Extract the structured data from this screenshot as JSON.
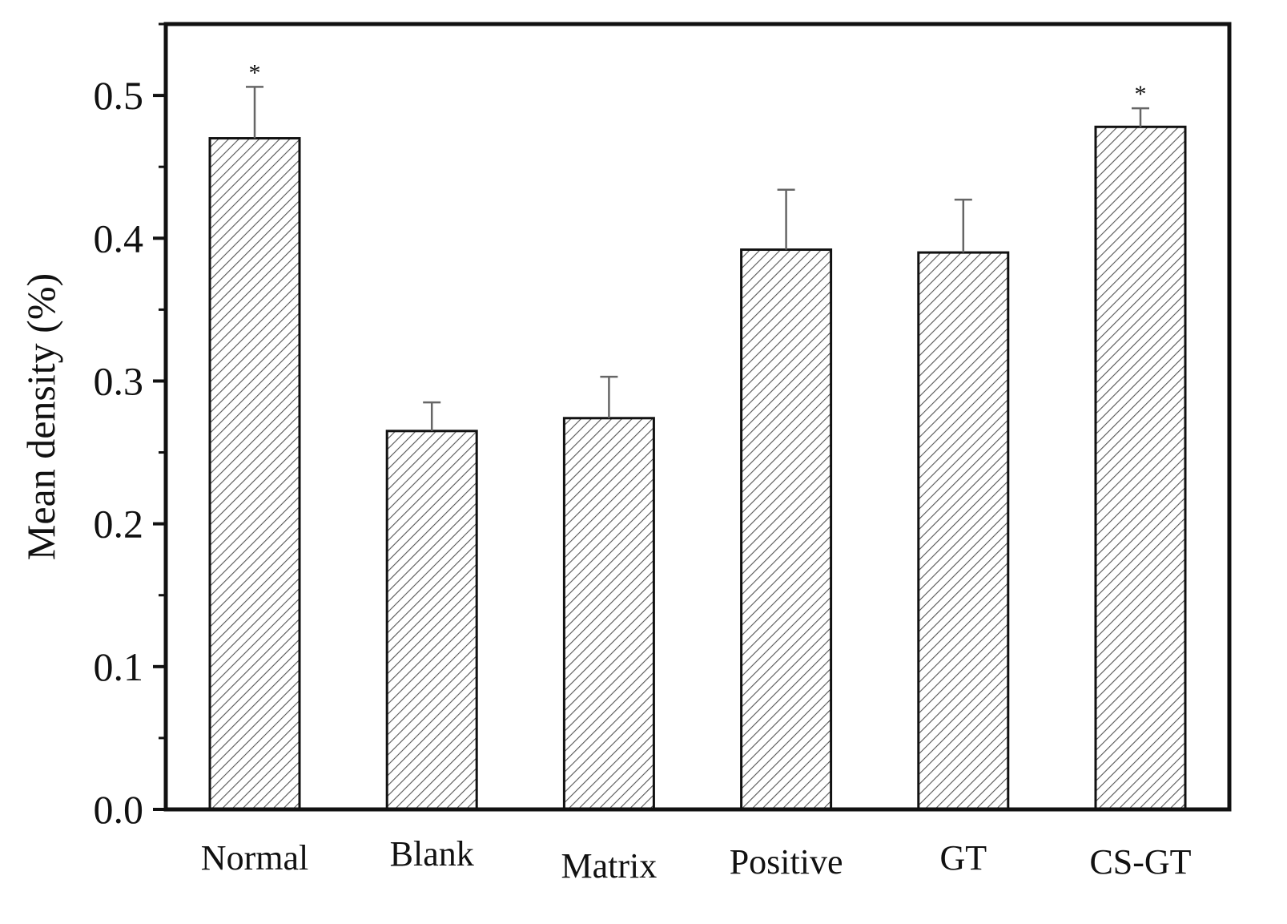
{
  "chart_data": {
    "type": "bar",
    "title": "",
    "xlabel": "",
    "ylabel": "Mean density (%)",
    "ylim": [
      0,
      0.55
    ],
    "yticks": [
      0.0,
      0.1,
      0.2,
      0.3,
      0.4,
      0.5
    ],
    "ytick_labels": [
      "0.0",
      "0.1",
      "0.2",
      "0.3",
      "0.4",
      "0.5"
    ],
    "categories": [
      "Normal",
      "Blank",
      "Matrix",
      "Positive",
      "GT",
      "CS-GT"
    ],
    "values": [
      0.47,
      0.265,
      0.274,
      0.392,
      0.39,
      0.478
    ],
    "errors": [
      0.036,
      0.02,
      0.029,
      0.042,
      0.037,
      0.013
    ],
    "significance": [
      "*",
      "",
      "",
      "",
      "",
      "*"
    ],
    "grid": false,
    "bar_fill": "hatched",
    "colors": {
      "axis": "#111111",
      "bar_edge": "#111111",
      "hatch": "#555555",
      "error_bar": "#666666"
    }
  }
}
